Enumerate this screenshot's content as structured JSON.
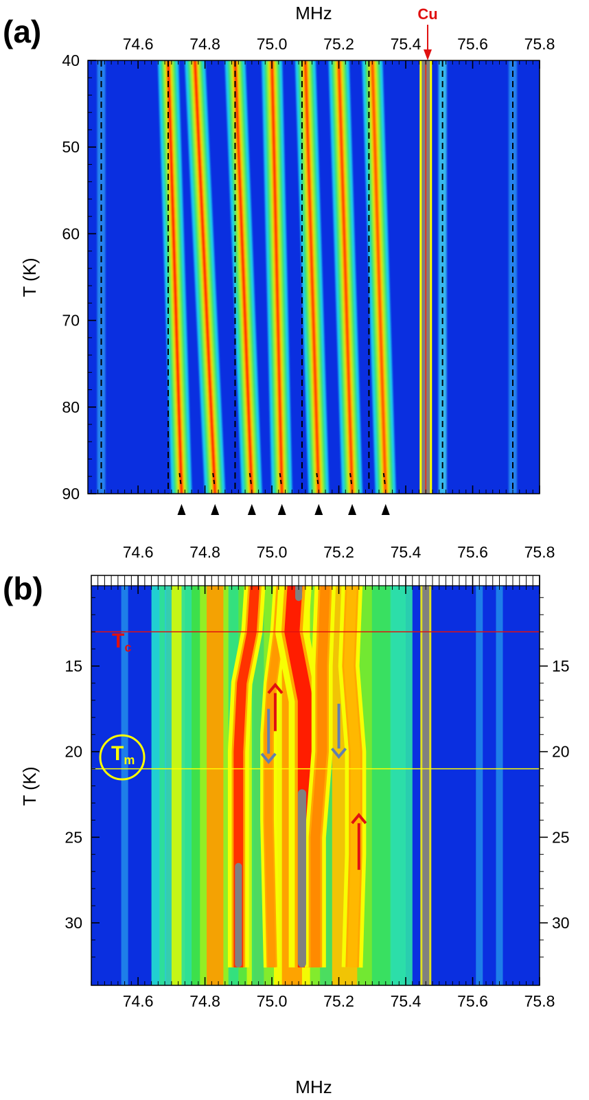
{
  "colors": {
    "background": "#0a2fe0",
    "colormap": [
      "#0a2fe0",
      "#1a70f0",
      "#1ee0f0",
      "#40e040",
      "#ffff00",
      "#ff8000",
      "#ff1000",
      "#808080"
    ],
    "cu_marker": "#e01010",
    "tc_line": "#e01010",
    "tm_line": "#ffff00",
    "up_arrow": "#e01010",
    "down_arrow": "#6080b0"
  },
  "chart_data": [
    {
      "panel_label": "(a)",
      "type": "heatmap",
      "xlabel": "MHz",
      "xlabel_position": "top",
      "ylabel": "T (K)",
      "xlim": [
        74.45,
        75.8
      ],
      "ylim": [
        40,
        90
      ],
      "y_inverted": true,
      "xticks": [
        "74.6",
        "74.8",
        "75.0",
        "75.2",
        "75.4",
        "75.6",
        "75.8"
      ],
      "yticks": [
        "40",
        "50",
        "60",
        "70",
        "80",
        "90"
      ],
      "grid": false,
      "cu_label": "Cu",
      "cu_frequency": 75.46,
      "dashed_reference_lines": [
        74.49,
        74.69,
        74.89,
        75.09,
        75.29,
        75.51,
        75.72
      ],
      "arrowhead_markers": [
        74.73,
        74.83,
        74.94,
        75.03,
        75.14,
        75.24,
        75.34
      ],
      "lines": [
        {
          "f_at_40K": 74.69,
          "f_at_90K": 74.73,
          "intensity": 0.92
        },
        {
          "f_at_40K": 74.77,
          "f_at_90K": 74.83,
          "intensity": 0.88
        },
        {
          "f_at_40K": 74.89,
          "f_at_90K": 74.94,
          "intensity": 0.85
        },
        {
          "f_at_40K": 75.0,
          "f_at_90K": 75.03,
          "intensity": 0.8
        },
        {
          "f_at_40K": 75.1,
          "f_at_90K": 75.14,
          "intensity": 0.75
        },
        {
          "f_at_40K": 75.2,
          "f_at_90K": 75.24,
          "intensity": 0.72
        },
        {
          "f_at_40K": 75.3,
          "f_at_90K": 75.34,
          "intensity": 0.62
        }
      ]
    },
    {
      "panel_label": "(b)",
      "type": "heatmap",
      "xlabel": "MHz",
      "xlabel_position": "bottom",
      "ylabel": "T (K)",
      "xlim": [
        74.45,
        75.8
      ],
      "ylim": [
        10,
        32.6
      ],
      "y_inverted": true,
      "xticks": [
        "74.6",
        "74.8",
        "75.0",
        "75.2",
        "75.4",
        "75.6",
        "75.8"
      ],
      "yticks": [
        "15",
        "20",
        "25",
        "30"
      ],
      "grid": false,
      "tc_label_main": "T",
      "tc_label_sub": "c",
      "tc_temperature": 13,
      "tm_label_main": "T",
      "tm_label_sub": "m",
      "tm_temperature": 21,
      "cu_frequency": 75.46,
      "arrows": [
        {
          "direction": "up",
          "frequency": 75.01,
          "t_from": 18.8,
          "t_to": 16.1
        },
        {
          "direction": "down",
          "frequency": 74.99,
          "t_from": 17.5,
          "t_to": 20.6
        },
        {
          "direction": "down",
          "frequency": 75.2,
          "t_from": 17.2,
          "t_to": 20.3
        },
        {
          "direction": "up",
          "frequency": 75.26,
          "t_from": 26.9,
          "t_to": 23.7
        }
      ]
    }
  ]
}
